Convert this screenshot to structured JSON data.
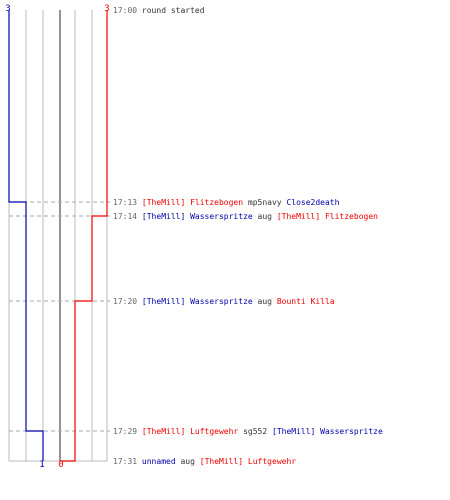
{
  "chart_data": {
    "type": "line",
    "title": "",
    "xlabel": "",
    "ylabel": "",
    "team_a": {
      "color": "#0000aa",
      "start_count": 3,
      "end_count": 1
    },
    "team_b": {
      "color": "#ee0000",
      "start_count": 3,
      "end_count": 0
    },
    "series": [
      {
        "key": "team_a",
        "times": [
          "17:00",
          "17:13",
          "17:29",
          "17:31"
        ],
        "values": [
          3,
          2,
          1,
          1
        ]
      },
      {
        "key": "team_b",
        "times": [
          "17:00",
          "17:14",
          "17:20",
          "17:31"
        ],
        "values": [
          3,
          2,
          1,
          0
        ]
      }
    ]
  },
  "events": [
    {
      "time": "17:00",
      "parts": [
        {
          "text": "round started",
          "team": "plain"
        }
      ]
    },
    {
      "time": "17:13",
      "parts": [
        {
          "text": "[TheMill] Flitzebogen",
          "team": "b"
        },
        {
          "text": "mp5navy",
          "team": "plain"
        },
        {
          "text": "Close2death",
          "team": "a"
        }
      ]
    },
    {
      "time": "17:14",
      "parts": [
        {
          "text": "[TheMill] Wasserspritze",
          "team": "a"
        },
        {
          "text": "aug",
          "team": "plain"
        },
        {
          "text": "[TheMill] Flitzebogen",
          "team": "b"
        }
      ]
    },
    {
      "time": "17:20",
      "parts": [
        {
          "text": "[TheMill] Wasserspritze",
          "team": "a"
        },
        {
          "text": "aug",
          "team": "plain"
        },
        {
          "text": "Bounti Killa",
          "team": "b"
        }
      ]
    },
    {
      "time": "17:29",
      "parts": [
        {
          "text": "[TheMill] Luftgewehr",
          "team": "b"
        },
        {
          "text": "sg552",
          "team": "plain"
        },
        {
          "text": "[TheMill] Wasserspritze",
          "team": "a"
        }
      ]
    },
    {
      "time": "17:31",
      "parts": [
        {
          "text": "unnamed",
          "team": "a"
        },
        {
          "text": "aug",
          "team": "plain"
        },
        {
          "text": "[TheMill] Luftgewehr",
          "team": "b"
        }
      ]
    }
  ]
}
